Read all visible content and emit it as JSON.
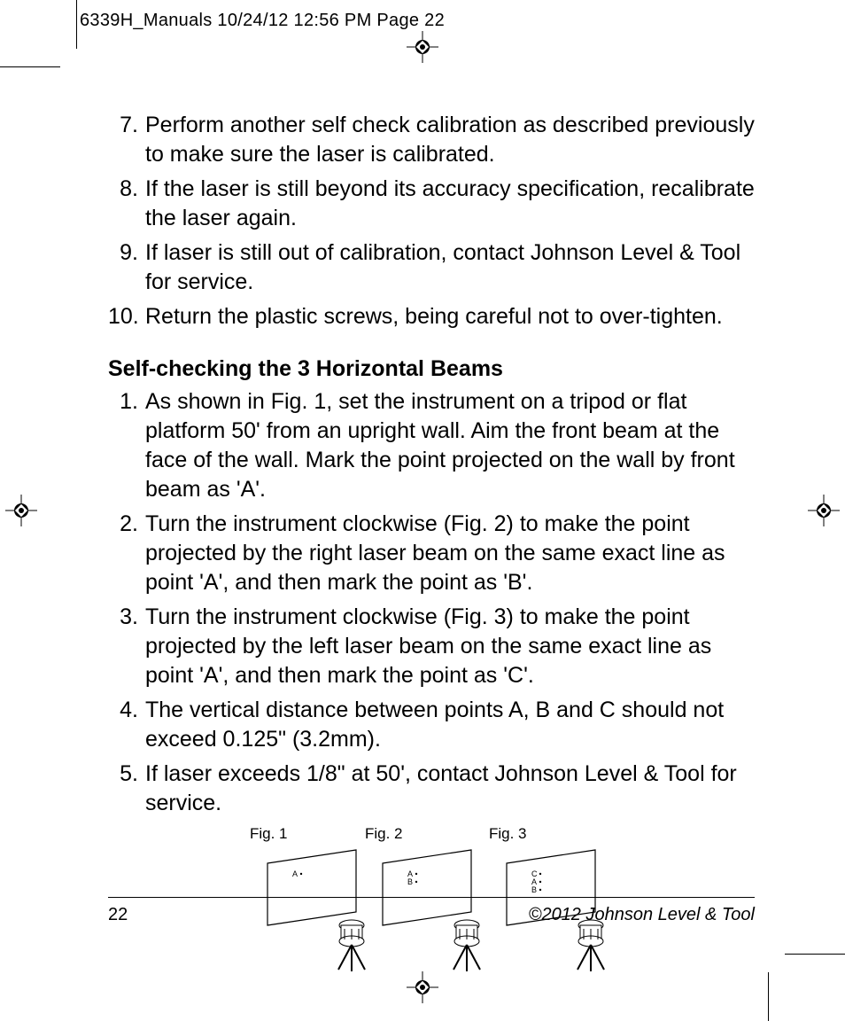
{
  "slug": "6339H_Manuals  10/24/12  12:56 PM  Page 22",
  "listA": [
    {
      "n": "7.",
      "t": "Perform another self check calibration as described previously to make sure the laser is calibrated."
    },
    {
      "n": "8.",
      "t": "If the laser is still beyond its accuracy specification, recalibrate the laser again."
    },
    {
      "n": "9.",
      "t": "If laser is still out of calibration, contact Johnson Level & Tool for service."
    },
    {
      "n": "10.",
      "t": "Return the plastic screws, being careful not to over-tighten."
    }
  ],
  "sectionTitle": "Self-checking the 3 Horizontal Beams",
  "listB": [
    {
      "n": "1.",
      "t": "As shown in Fig. 1, set the instrument on a tripod or flat platform 50' from an upright wall.  Aim the front beam at the face of the wall.  Mark the point projected on the wall by front beam as 'A'."
    },
    {
      "n": "2.",
      "t": "Turn the instrument clockwise (Fig. 2) to make the point projected by the right laser beam on the same exact line as point 'A', and then mark the point as 'B'."
    },
    {
      "n": "3.",
      "t": "Turn the instrument clockwise (Fig. 3) to make the point projected by the left laser beam on the same exact line as point 'A', and then mark the point as 'C'."
    },
    {
      "n": "4.",
      "t": "The vertical distance between points A, B and C should not exceed 0.125\" (3.2mm)."
    },
    {
      "n": "5.",
      "t": "If laser exceeds 1/8\" at 50', contact Johnson Level & Tool for service."
    }
  ],
  "figs": {
    "labels": [
      "Fig. 1",
      "Fig. 2",
      "Fig. 3"
    ],
    "points": [
      [
        "A"
      ],
      [
        "A",
        "B"
      ],
      [
        "C",
        "A",
        "B"
      ]
    ],
    "positions": [
      160,
      290,
      430
    ]
  },
  "footer": {
    "page": "22",
    "copyright": "©2012 Johnson Level & Tool"
  }
}
